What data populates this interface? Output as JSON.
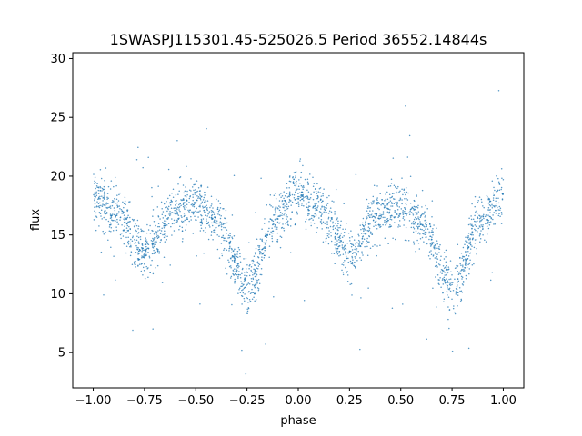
{
  "chart_data": {
    "type": "scatter",
    "title": "1SWASPJ115301.45-525026.5 Period 36552.14844s",
    "xlabel": "phase",
    "ylabel": "flux",
    "xlim": [
      -1.1,
      1.1
    ],
    "ylim": [
      2.0,
      30.5
    ],
    "xticks": [
      -1.0,
      -0.75,
      -0.5,
      -0.25,
      0.0,
      0.25,
      0.5,
      0.75,
      1.0
    ],
    "xtick_labels": [
      "−1.00",
      "−0.75",
      "−0.50",
      "−0.25",
      "0.00",
      "0.25",
      "0.50",
      "0.75",
      "1.00"
    ],
    "yticks": [
      5,
      10,
      15,
      20,
      25,
      30
    ],
    "ytick_labels": [
      "5",
      "10",
      "15",
      "20",
      "25",
      "30"
    ],
    "grid": false,
    "legend": "none",
    "point_color": "#1f77b4",
    "series": [
      {
        "points_profile": [
          {
            "x": -1.0,
            "y": 18.3
          },
          {
            "x": -0.9,
            "y": 17.0
          },
          {
            "x": -0.75,
            "y": 13.5
          },
          {
            "x": -0.6,
            "y": 17.0
          },
          {
            "x": -0.5,
            "y": 17.5
          },
          {
            "x": -0.4,
            "y": 16.0
          },
          {
            "x": -0.25,
            "y": 10.5
          },
          {
            "x": -0.1,
            "y": 16.5
          },
          {
            "x": 0.0,
            "y": 18.8
          },
          {
            "x": 0.1,
            "y": 17.2
          },
          {
            "x": 0.25,
            "y": 13.5
          },
          {
            "x": 0.4,
            "y": 17.0
          },
          {
            "x": 0.5,
            "y": 17.5
          },
          {
            "x": 0.6,
            "y": 16.0
          },
          {
            "x": 0.75,
            "y": 10.5
          },
          {
            "x": 0.9,
            "y": 16.5
          },
          {
            "x": 1.0,
            "y": 18.3
          }
        ],
        "scatter_spread": 1.1,
        "x_range": [
          -1.0,
          1.0
        ]
      }
    ]
  }
}
